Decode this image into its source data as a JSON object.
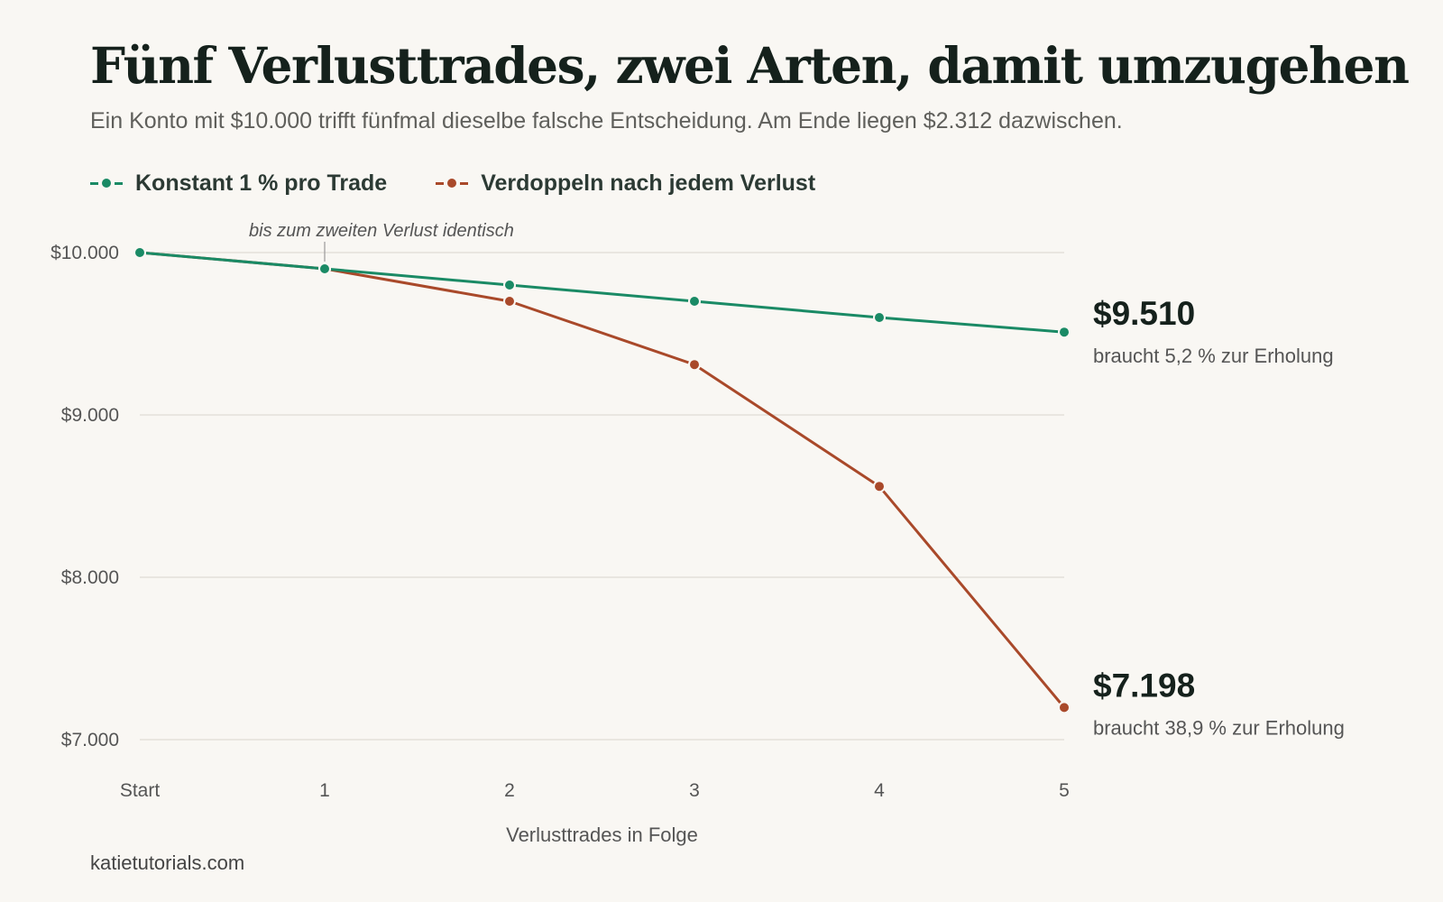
{
  "title": "Fünf Verlusttrades, zwei Arten, damit umzugehen",
  "subtitle": "Ein Konto mit $10.000 trifft fünfmal dieselbe falsche Entscheidung. Am Ende liegen $2.312 dazwischen.",
  "footer": "katietutorials.com",
  "colors": {
    "constant": "#1a8a65",
    "doubling": "#a9492a",
    "grid": "#e4e1da",
    "background": "#f9f7f3"
  },
  "chart_data": {
    "type": "line",
    "x": [
      "Start",
      "1",
      "2",
      "3",
      "4",
      "5"
    ],
    "xlabel": "Verlusttrades in Folge",
    "ylabel": "",
    "ylim": [
      7000,
      10000
    ],
    "y_ticks": [
      10000,
      9000,
      8000,
      7000
    ],
    "y_tick_labels": [
      "$10.000",
      "$9.000",
      "$8.000",
      "$7.000"
    ],
    "grid": "horizontal",
    "legend_position": "top-left",
    "series": [
      {
        "name": "Konstant 1 % pro Trade",
        "color": "#1a8a65",
        "values": [
          10000,
          9900,
          9800,
          9700,
          9600,
          9510
        ],
        "end_label": "$9.510",
        "end_note": "braucht 5,2 % zur Erholung"
      },
      {
        "name": "Verdoppeln nach jedem Verlust",
        "color": "#a9492a",
        "values": [
          10000,
          9900,
          9700,
          9310,
          8560,
          7198
        ],
        "end_label": "$7.198",
        "end_note": "braucht 38,9 % zur Erholung"
      }
    ],
    "annotations": [
      {
        "x": "1",
        "text": "bis zum zweiten Verlust identisch"
      }
    ]
  }
}
